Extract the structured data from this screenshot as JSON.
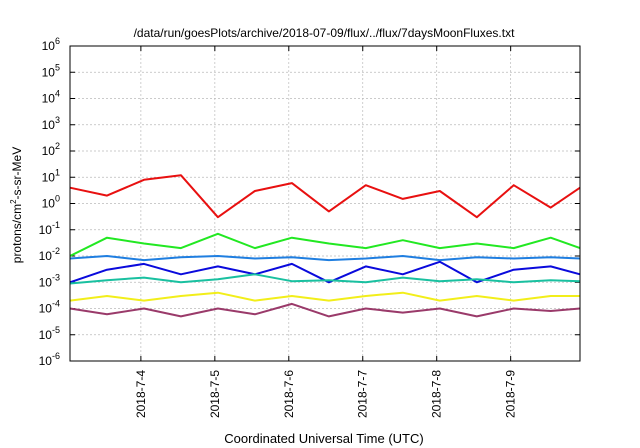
{
  "chart_data": {
    "type": "line",
    "title": "/data/run/goesPlots/archive/2018-07-09/flux/../flux/7daysMoonFluxes.txt",
    "xlabel": "Coordinated Universal Time (UTC)",
    "ylabel": {
      "base": "protons/cm",
      "sup": "2",
      "rest": "-s-sr-MeV"
    },
    "yscale": "log",
    "ylim_exp": [
      -6,
      6
    ],
    "y_ticks": [
      {
        "base": "10",
        "exp": "-6"
      },
      {
        "base": "10",
        "exp": "-5"
      },
      {
        "base": "10",
        "exp": "-4"
      },
      {
        "base": "10",
        "exp": "-3"
      },
      {
        "base": "10",
        "exp": "-2"
      },
      {
        "base": "10",
        "exp": "-1"
      },
      {
        "base": "10",
        "exp": "0"
      },
      {
        "base": "10",
        "exp": "1"
      },
      {
        "base": "10",
        "exp": "2"
      },
      {
        "base": "10",
        "exp": "3"
      },
      {
        "base": "10",
        "exp": "4"
      },
      {
        "base": "10",
        "exp": "5"
      },
      {
        "base": "10",
        "exp": "6"
      }
    ],
    "x_range": [
      "2018-07-03T01:00",
      "2018-07-09T22:30"
    ],
    "x_ticks": [
      "2018-7-4",
      "2018-7-5",
      "2018-7-6",
      "2018-7-7",
      "2018-7-8",
      "2018-7-9"
    ],
    "grid": true,
    "x_samples": [
      "2018-07-03T01:00",
      "2018-07-03T13:00",
      "2018-07-04T01:00",
      "2018-07-04T13:00",
      "2018-07-05T01:00",
      "2018-07-05T13:00",
      "2018-07-06T01:00",
      "2018-07-06T13:00",
      "2018-07-07T01:00",
      "2018-07-07T13:00",
      "2018-07-08T01:00",
      "2018-07-08T13:00",
      "2018-07-09T01:00",
      "2018-07-09T13:00",
      "2018-07-09T22:30"
    ],
    "series": [
      {
        "color": "#e81010",
        "values": [
          4,
          2,
          8,
          12,
          0.3,
          3,
          6,
          0.5,
          5,
          1.5,
          3,
          0.3,
          5,
          0.7,
          4
        ]
      },
      {
        "color": "#22e822",
        "values": [
          0.01,
          0.05,
          0.03,
          0.02,
          0.07,
          0.02,
          0.05,
          0.03,
          0.02,
          0.04,
          0.02,
          0.03,
          0.02,
          0.05,
          0.02
        ]
      },
      {
        "color": "#1f7ee0",
        "values": [
          0.008,
          0.01,
          0.007,
          0.009,
          0.01,
          0.008,
          0.009,
          0.007,
          0.008,
          0.01,
          0.007,
          0.009,
          0.008,
          0.009,
          0.008
        ]
      },
      {
        "color": "#0a0adc",
        "values": [
          0.001,
          0.003,
          0.005,
          0.002,
          0.004,
          0.002,
          0.005,
          0.001,
          0.004,
          0.002,
          0.006,
          0.001,
          0.003,
          0.004,
          0.002
        ]
      },
      {
        "color": "#19c0a0",
        "values": [
          0.0009,
          0.0012,
          0.0015,
          0.001,
          0.0013,
          0.002,
          0.0011,
          0.0012,
          0.001,
          0.0015,
          0.0011,
          0.0013,
          0.001,
          0.0012,
          0.0011
        ]
      },
      {
        "color": "#f2ee1a",
        "values": [
          0.0002,
          0.0003,
          0.0002,
          0.0003,
          0.0004,
          0.0002,
          0.0003,
          0.0002,
          0.0003,
          0.0004,
          0.0002,
          0.0003,
          0.0002,
          0.0003,
          0.0003
        ]
      },
      {
        "color": "#9a3a6a",
        "values": [
          0.0001,
          6e-05,
          0.0001,
          5e-05,
          0.0001,
          6e-05,
          0.00015,
          5e-05,
          0.0001,
          7e-05,
          0.0001,
          5e-05,
          0.0001,
          8e-05,
          0.0001
        ]
      }
    ]
  }
}
